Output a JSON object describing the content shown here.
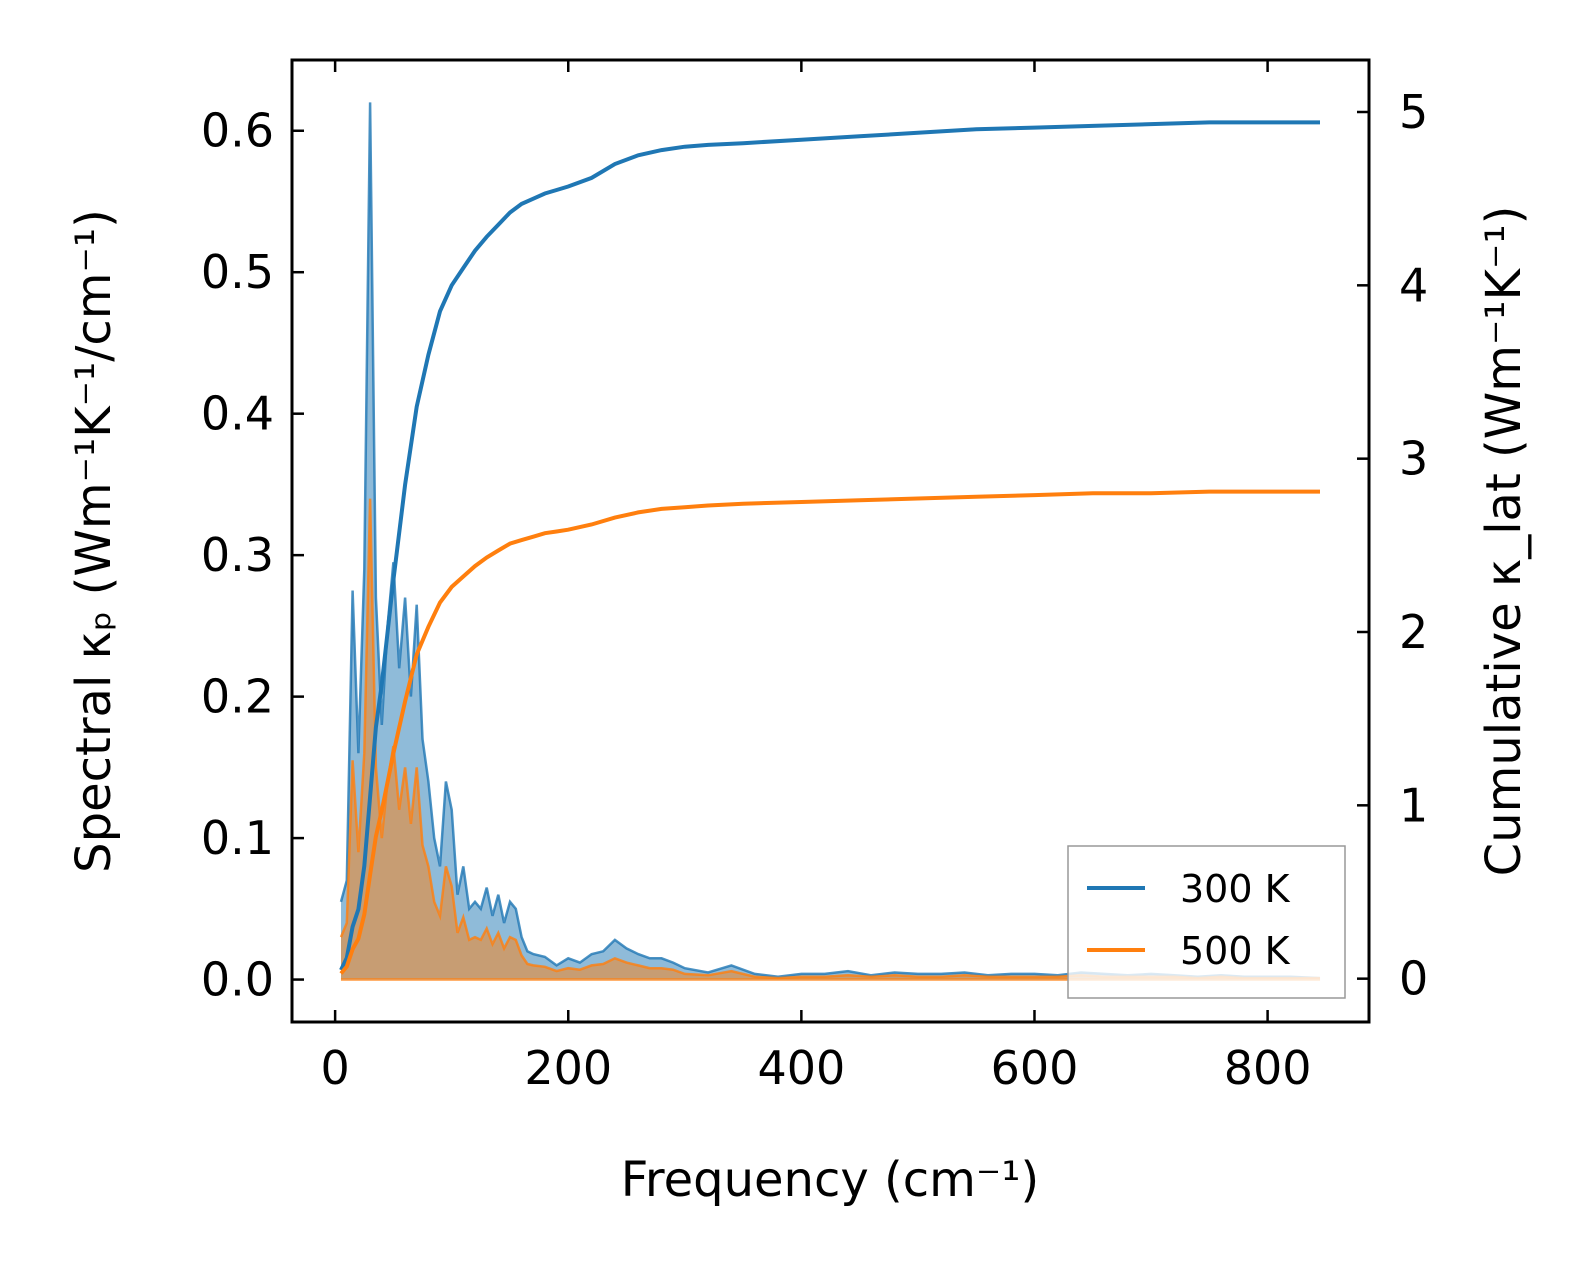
{
  "chart_data": {
    "type": "line",
    "xlabel": "Frequency (cm⁻¹)",
    "ylabel_left": "Spectral κₚ (Wm⁻¹K⁻¹/cm⁻¹)",
    "ylabel_right": "Cumulative κ_lat (Wm⁻¹K⁻¹)",
    "xlim": [
      -37,
      887
    ],
    "ylim_left": [
      -0.03,
      0.65
    ],
    "ylim_right": [
      -0.25,
      5.3
    ],
    "x_ticks": [
      0,
      200,
      400,
      600,
      800
    ],
    "y_left_ticks": [
      0.0,
      0.1,
      0.2,
      0.3,
      0.4,
      0.5,
      0.6
    ],
    "y_right_ticks": [
      0,
      1,
      2,
      3,
      4,
      5
    ],
    "legend_position": "lower right",
    "colors": {
      "t300": "#1f77b4",
      "t500": "#ff7f0e"
    },
    "spectral": [
      {
        "name": "300 K",
        "x": [
          5,
          10,
          15,
          20,
          25,
          30,
          35,
          40,
          45,
          50,
          55,
          60,
          65,
          70,
          75,
          80,
          85,
          90,
          95,
          100,
          105,
          110,
          115,
          120,
          125,
          130,
          135,
          140,
          145,
          150,
          155,
          160,
          165,
          170,
          180,
          190,
          200,
          210,
          220,
          230,
          240,
          250,
          260,
          270,
          280,
          290,
          300,
          320,
          340,
          360,
          380,
          400,
          420,
          440,
          460,
          480,
          500,
          520,
          540,
          560,
          580,
          600,
          620,
          640,
          660,
          680,
          700,
          720,
          740,
          760,
          780,
          800,
          820,
          845
        ],
        "values": [
          0.055,
          0.07,
          0.275,
          0.16,
          0.29,
          0.62,
          0.27,
          0.18,
          0.25,
          0.295,
          0.22,
          0.27,
          0.2,
          0.265,
          0.17,
          0.14,
          0.1,
          0.08,
          0.14,
          0.12,
          0.06,
          0.08,
          0.05,
          0.055,
          0.05,
          0.065,
          0.045,
          0.06,
          0.04,
          0.055,
          0.05,
          0.03,
          0.02,
          0.018,
          0.016,
          0.01,
          0.015,
          0.012,
          0.018,
          0.02,
          0.028,
          0.022,
          0.018,
          0.015,
          0.015,
          0.012,
          0.008,
          0.005,
          0.01,
          0.004,
          0.002,
          0.004,
          0.004,
          0.006,
          0.003,
          0.005,
          0.004,
          0.004,
          0.005,
          0.003,
          0.004,
          0.004,
          0.003,
          0.005,
          0.004,
          0.003,
          0.004,
          0.003,
          0.002,
          0.003,
          0.002,
          0.002,
          0.002,
          0.001
        ]
      },
      {
        "name": "500 K",
        "x": [
          5,
          10,
          15,
          20,
          25,
          30,
          35,
          40,
          45,
          50,
          55,
          60,
          65,
          70,
          75,
          80,
          85,
          90,
          95,
          100,
          105,
          110,
          115,
          120,
          125,
          130,
          135,
          140,
          145,
          150,
          155,
          160,
          165,
          170,
          180,
          190,
          200,
          210,
          220,
          230,
          240,
          250,
          260,
          270,
          280,
          290,
          300,
          320,
          340,
          360,
          380,
          400,
          420,
          440,
          460,
          480,
          500,
          520,
          540,
          560,
          580,
          600,
          620,
          640,
          660,
          680,
          700,
          720,
          740,
          760,
          780,
          800,
          820,
          845
        ],
        "values": [
          0.03,
          0.04,
          0.155,
          0.09,
          0.16,
          0.34,
          0.15,
          0.1,
          0.14,
          0.165,
          0.12,
          0.15,
          0.11,
          0.15,
          0.095,
          0.08,
          0.055,
          0.045,
          0.08,
          0.066,
          0.033,
          0.044,
          0.028,
          0.03,
          0.028,
          0.036,
          0.025,
          0.033,
          0.022,
          0.03,
          0.028,
          0.017,
          0.011,
          0.01,
          0.009,
          0.006,
          0.008,
          0.007,
          0.01,
          0.011,
          0.015,
          0.012,
          0.01,
          0.008,
          0.008,
          0.007,
          0.004,
          0.003,
          0.006,
          0.002,
          0.001,
          0.002,
          0.002,
          0.003,
          0.002,
          0.003,
          0.002,
          0.002,
          0.003,
          0.002,
          0.002,
          0.002,
          0.002,
          0.003,
          0.002,
          0.002,
          0.002,
          0.002,
          0.001,
          0.002,
          0.001,
          0.001,
          0.001,
          0.001
        ]
      }
    ],
    "cumulative": [
      {
        "name": "300 K",
        "x": [
          5,
          10,
          15,
          20,
          25,
          30,
          35,
          40,
          50,
          60,
          70,
          80,
          90,
          100,
          110,
          120,
          130,
          140,
          150,
          160,
          170,
          180,
          190,
          200,
          220,
          240,
          260,
          280,
          300,
          320,
          350,
          400,
          450,
          500,
          550,
          600,
          650,
          700,
          750,
          800,
          845
        ],
        "values": [
          0.05,
          0.12,
          0.3,
          0.4,
          0.65,
          1.05,
          1.45,
          1.7,
          2.3,
          2.85,
          3.3,
          3.6,
          3.85,
          4.0,
          4.1,
          4.2,
          4.28,
          4.35,
          4.42,
          4.47,
          4.5,
          4.53,
          4.55,
          4.57,
          4.62,
          4.7,
          4.75,
          4.78,
          4.8,
          4.81,
          4.82,
          4.84,
          4.86,
          4.88,
          4.9,
          4.91,
          4.92,
          4.93,
          4.94,
          4.94,
          4.94
        ]
      },
      {
        "name": "500 K",
        "x": [
          5,
          10,
          15,
          20,
          25,
          30,
          35,
          40,
          50,
          60,
          70,
          80,
          90,
          100,
          110,
          120,
          130,
          140,
          150,
          160,
          170,
          180,
          190,
          200,
          220,
          240,
          260,
          280,
          300,
          320,
          350,
          400,
          450,
          500,
          550,
          600,
          650,
          700,
          750,
          800,
          845
        ],
        "values": [
          0.03,
          0.07,
          0.17,
          0.23,
          0.37,
          0.6,
          0.82,
          0.97,
          1.3,
          1.6,
          1.87,
          2.03,
          2.17,
          2.26,
          2.32,
          2.38,
          2.43,
          2.47,
          2.51,
          2.53,
          2.55,
          2.57,
          2.58,
          2.59,
          2.62,
          2.66,
          2.69,
          2.71,
          2.72,
          2.73,
          2.74,
          2.75,
          2.76,
          2.77,
          2.78,
          2.79,
          2.8,
          2.8,
          2.81,
          2.81,
          2.81
        ]
      }
    ]
  }
}
